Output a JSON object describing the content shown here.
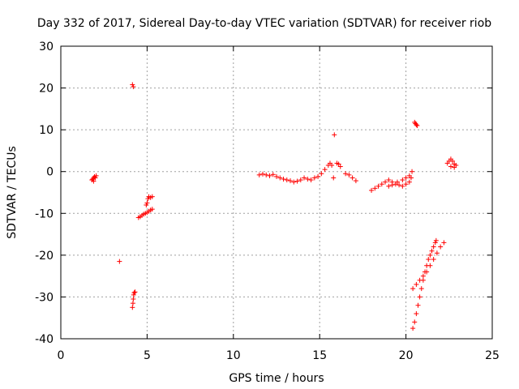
{
  "chart_data": {
    "type": "scatter",
    "title": "Day 332 of 2017, Sidereal Day-to-day VTEC variation (SDTVAR) for receiver riob",
    "xlabel": "GPS time / hours",
    "ylabel": "SDTVAR / TECUs",
    "xlim": [
      0,
      25
    ],
    "ylim": [
      -40,
      30
    ],
    "xticks": [
      0,
      5,
      10,
      15,
      20,
      25
    ],
    "yticks": [
      -40,
      -30,
      -20,
      -10,
      0,
      10,
      20,
      30
    ],
    "grid": true,
    "marker": "+",
    "series": [
      {
        "name": "riob",
        "color": "#ff0000",
        "points": [
          [
            1.8,
            -2.0
          ],
          [
            1.85,
            -1.8
          ],
          [
            1.9,
            -1.5
          ],
          [
            1.95,
            -1.2
          ],
          [
            2.0,
            -1.5
          ],
          [
            2.05,
            -1.0
          ],
          [
            1.9,
            -2.3
          ],
          [
            4.15,
            20.8
          ],
          [
            4.2,
            20.3
          ],
          [
            3.4,
            -21.5
          ],
          [
            4.15,
            -32.5
          ],
          [
            4.18,
            -31.5
          ],
          [
            4.2,
            -30.5
          ],
          [
            4.22,
            -29.5
          ],
          [
            4.25,
            -29.0
          ],
          [
            4.3,
            -28.8
          ],
          [
            4.5,
            -11.0
          ],
          [
            4.6,
            -10.8
          ],
          [
            4.7,
            -10.5
          ],
          [
            4.8,
            -10.2
          ],
          [
            4.9,
            -10.0
          ],
          [
            5.0,
            -9.8
          ],
          [
            5.1,
            -9.5
          ],
          [
            5.2,
            -9.2
          ],
          [
            5.3,
            -9.0
          ],
          [
            4.95,
            -8.0
          ],
          [
            5.0,
            -7.5
          ],
          [
            5.05,
            -6.5
          ],
          [
            5.1,
            -6.0
          ],
          [
            5.2,
            -6.2
          ],
          [
            5.3,
            -6.0
          ],
          [
            11.5,
            -0.8
          ],
          [
            11.7,
            -0.6
          ],
          [
            11.9,
            -0.8
          ],
          [
            12.1,
            -1.0
          ],
          [
            12.3,
            -0.7
          ],
          [
            12.5,
            -1.2
          ],
          [
            12.7,
            -1.5
          ],
          [
            12.9,
            -1.8
          ],
          [
            13.1,
            -2.0
          ],
          [
            13.3,
            -2.2
          ],
          [
            13.5,
            -2.5
          ],
          [
            13.7,
            -2.3
          ],
          [
            13.9,
            -2.0
          ],
          [
            14.1,
            -1.5
          ],
          [
            14.3,
            -1.8
          ],
          [
            14.5,
            -2.0
          ],
          [
            14.7,
            -1.5
          ],
          [
            14.9,
            -1.2
          ],
          [
            15.1,
            -0.5
          ],
          [
            15.3,
            0.5
          ],
          [
            15.5,
            1.5
          ],
          [
            15.6,
            2.0
          ],
          [
            15.7,
            1.5
          ],
          [
            15.8,
            -1.5
          ],
          [
            15.85,
            8.8
          ],
          [
            16.0,
            2.0
          ],
          [
            16.1,
            1.8
          ],
          [
            16.2,
            1.2
          ],
          [
            16.5,
            -0.5
          ],
          [
            16.7,
            -0.8
          ],
          [
            16.9,
            -1.5
          ],
          [
            17.1,
            -2.2
          ],
          [
            18.0,
            -4.5
          ],
          [
            18.2,
            -4.0
          ],
          [
            18.4,
            -3.5
          ],
          [
            18.6,
            -3.0
          ],
          [
            18.8,
            -2.5
          ],
          [
            19.0,
            -2.0
          ],
          [
            19.2,
            -2.5
          ],
          [
            19.4,
            -3.0
          ],
          [
            19.6,
            -3.2
          ],
          [
            19.8,
            -3.5
          ],
          [
            20.0,
            -3.0
          ],
          [
            20.2,
            -2.5
          ],
          [
            20.3,
            -1.5
          ],
          [
            20.35,
            0.0
          ],
          [
            19.0,
            -3.5
          ],
          [
            19.2,
            -3.2
          ],
          [
            19.5,
            -2.5
          ],
          [
            19.8,
            -2.0
          ],
          [
            20.0,
            -1.5
          ],
          [
            20.2,
            -1.0
          ],
          [
            20.5,
            11.8
          ],
          [
            20.55,
            11.5
          ],
          [
            20.6,
            11.2
          ],
          [
            20.65,
            11.0
          ],
          [
            20.4,
            -37.5
          ],
          [
            20.5,
            -36.0
          ],
          [
            20.6,
            -34.0
          ],
          [
            20.7,
            -32.0
          ],
          [
            20.8,
            -30.0
          ],
          [
            20.9,
            -28.0
          ],
          [
            21.0,
            -26.0
          ],
          [
            21.1,
            -24.0
          ],
          [
            21.2,
            -22.5
          ],
          [
            21.3,
            -21.0
          ],
          [
            21.4,
            -20.0
          ],
          [
            21.5,
            -19.0
          ],
          [
            21.6,
            -18.0
          ],
          [
            21.7,
            -17.0
          ],
          [
            21.75,
            -16.5
          ],
          [
            20.4,
            -28.0
          ],
          [
            20.6,
            -27.0
          ],
          [
            20.8,
            -26.0
          ],
          [
            21.0,
            -25.0
          ],
          [
            21.2,
            -24.0
          ],
          [
            21.4,
            -22.5
          ],
          [
            21.6,
            -21.0
          ],
          [
            21.8,
            -19.5
          ],
          [
            22.0,
            -18.0
          ],
          [
            22.2,
            -17.0
          ],
          [
            22.4,
            2.0
          ],
          [
            22.5,
            2.5
          ],
          [
            22.6,
            3.0
          ],
          [
            22.7,
            2.5
          ],
          [
            22.8,
            1.8
          ],
          [
            22.9,
            1.5
          ],
          [
            22.6,
            1.2
          ],
          [
            22.8,
            1.0
          ]
        ]
      }
    ]
  }
}
